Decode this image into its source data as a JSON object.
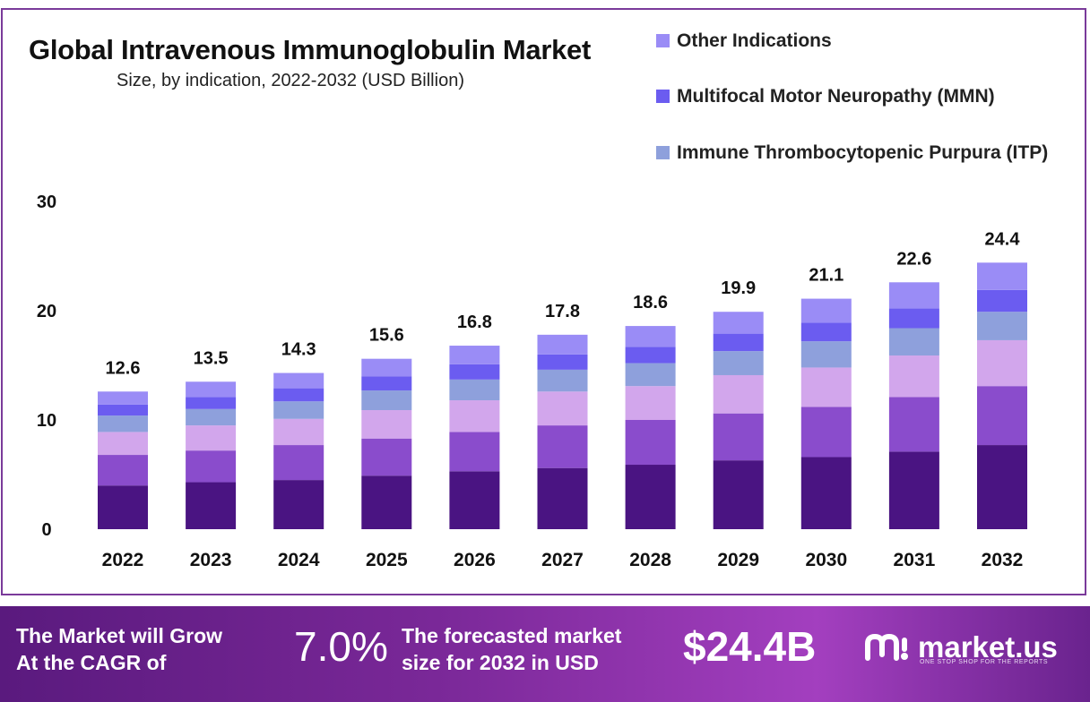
{
  "chart_data": {
    "type": "bar",
    "stacked": true,
    "title": "Global Intravenous Immunoglobulin Market",
    "subtitle": "Size, by indication, 2022-2032 (USD Billion)",
    "categories": [
      "2022",
      "2023",
      "2024",
      "2025",
      "2026",
      "2027",
      "2028",
      "2029",
      "2030",
      "2031",
      "2032"
    ],
    "totals": [
      12.6,
      13.5,
      14.3,
      15.6,
      16.8,
      17.8,
      18.6,
      19.9,
      21.1,
      22.6,
      24.4
    ],
    "total_labels": [
      "12.6",
      "13.5",
      "14.3",
      "15.6",
      "16.8",
      "17.8",
      "18.6",
      "19.9",
      "21.1",
      "22.6",
      "24.4"
    ],
    "series": [
      {
        "color": "#4a1482",
        "values": [
          4.0,
          4.3,
          4.5,
          4.9,
          5.3,
          5.6,
          5.9,
          6.3,
          6.6,
          7.1,
          7.7
        ]
      },
      {
        "color": "#8a4ccc",
        "values": [
          2.8,
          2.9,
          3.2,
          3.4,
          3.6,
          3.9,
          4.1,
          4.3,
          4.6,
          5.0,
          5.4
        ]
      },
      {
        "color": "#d2a6ec",
        "values": [
          2.1,
          2.3,
          2.4,
          2.6,
          2.9,
          3.1,
          3.1,
          3.5,
          3.6,
          3.8,
          4.2
        ]
      },
      {
        "name": "Immune Thrombocytopenic Purpura (ITP)",
        "color": "#8ea0dc",
        "values": [
          1.5,
          1.5,
          1.6,
          1.8,
          1.9,
          2.0,
          2.1,
          2.2,
          2.4,
          2.5,
          2.6
        ]
      },
      {
        "name": "Multifocal Motor Neuropathy (MMN)",
        "color": "#6b5cf0",
        "values": [
          1.0,
          1.1,
          1.2,
          1.3,
          1.4,
          1.4,
          1.5,
          1.6,
          1.7,
          1.8,
          2.0
        ]
      },
      {
        "name": "Other Indications",
        "color": "#9a8cf6",
        "values": [
          1.2,
          1.4,
          1.4,
          1.6,
          1.7,
          1.8,
          1.9,
          2.0,
          2.2,
          2.4,
          2.5
        ]
      }
    ],
    "ylim": [
      0,
      30
    ],
    "yticks": [
      "0",
      "10",
      "20",
      "30"
    ],
    "grid": false,
    "legend_position": "top-right"
  },
  "legend": [
    {
      "label": "Other Indications",
      "color": "#9a8cf6"
    },
    {
      "label": "Multifocal Motor Neuropathy (MMN)",
      "color": "#6b5cf0"
    },
    {
      "label": "Immune Thrombocytopenic Purpura (ITP)",
      "color": "#8ea0dc"
    }
  ],
  "banner": {
    "cagr_label_line1": "The Market will Grow",
    "cagr_label_line2": "At the CAGR of",
    "cagr_value": "7.0%",
    "forecast_label_line1": "The forecasted market",
    "forecast_label_line2": "size for 2032 in USD",
    "market_value": "$24.4B",
    "brand_name": "market.us",
    "brand_tagline": "ONE STOP SHOP FOR THE REPORTS",
    "colors": {
      "start": "#5a1a7e",
      "mid": "#a33fbf"
    }
  }
}
